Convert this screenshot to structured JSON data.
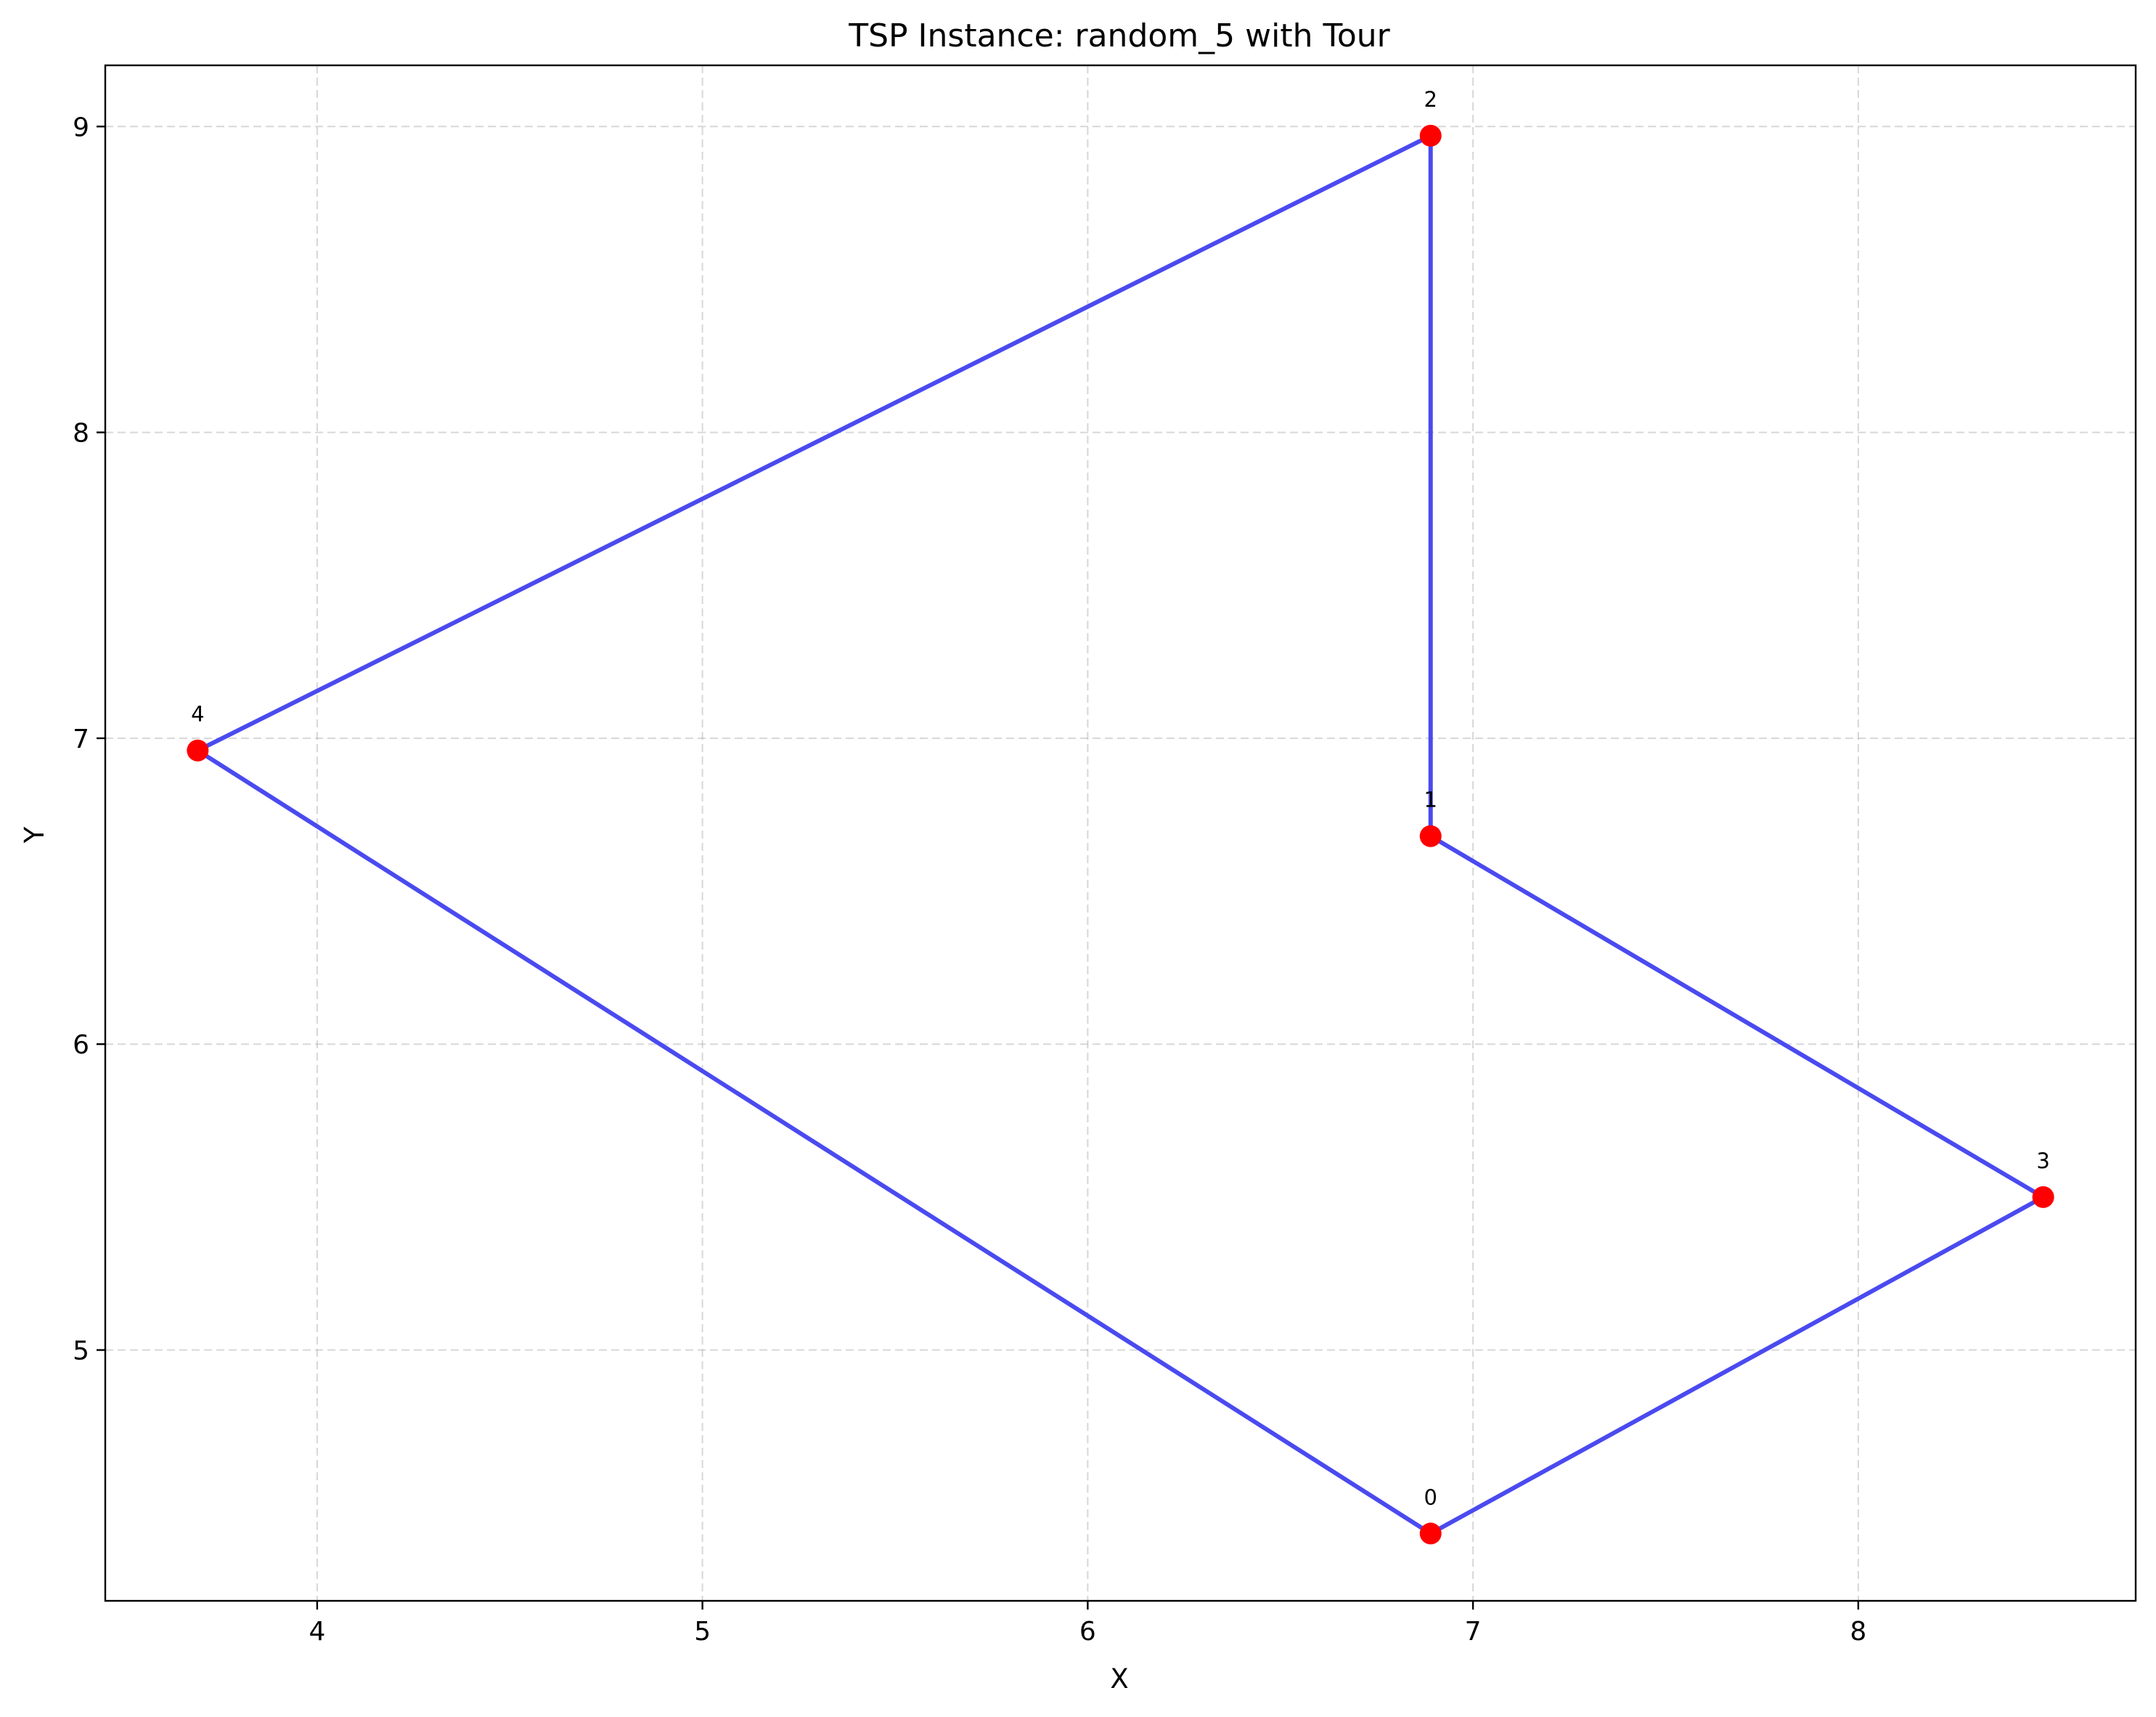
{
  "chart_data": {
    "type": "scatter",
    "title": "TSP Instance: random_5 with Tour",
    "xlabel": "X",
    "ylabel": "Y",
    "xlim": [
      3.45,
      8.72
    ],
    "ylim": [
      4.18,
      9.2
    ],
    "xticks": [
      4,
      5,
      6,
      7,
      8
    ],
    "yticks": [
      5,
      6,
      7,
      8,
      9
    ],
    "grid": true,
    "points": [
      {
        "label": "0",
        "x": 6.89,
        "y": 4.4
      },
      {
        "label": "1",
        "x": 6.89,
        "y": 6.68
      },
      {
        "label": "2",
        "x": 6.89,
        "y": 8.97
      },
      {
        "label": "3",
        "x": 8.48,
        "y": 5.5
      },
      {
        "label": "4",
        "x": 3.69,
        "y": 6.96
      }
    ],
    "tour": [
      0,
      3,
      1,
      2,
      4,
      0
    ],
    "colors": {
      "tour_line": "#4a4af0",
      "node_fill": "#ff0000",
      "grid": "#b0b0b0"
    }
  }
}
